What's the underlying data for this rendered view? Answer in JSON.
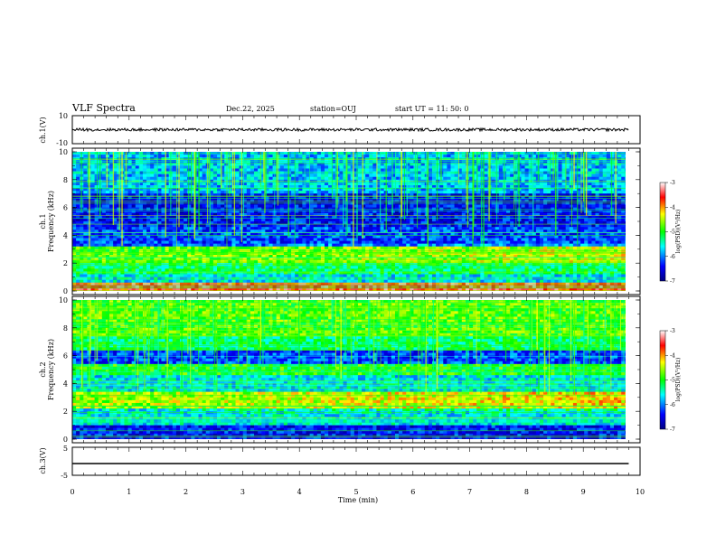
{
  "header": {
    "title": "VLF Spectra",
    "date": "Dec.22, 2025",
    "station": "station=OUJ",
    "start_ut": "start  UT =   11: 50: 0"
  },
  "chart_data": [
    {
      "type": "line",
      "panel": "ch1-waveform",
      "ylabel": "ch.1(V)",
      "ylim": [
        -10,
        10
      ],
      "yticks_labeled": [
        "10",
        "-10"
      ],
      "xlim": [
        0,
        10
      ],
      "series": [
        {
          "baseline": 0,
          "amplitude": 1
        }
      ]
    },
    {
      "type": "heatmap",
      "panel": "ch1-spectrogram",
      "ylabel": "ch.1\nFrequency (kHz)",
      "ylabel_lines": [
        "ch.1",
        "Frequency (kHz)"
      ],
      "ylim": [
        0,
        10
      ],
      "yticks": [
        "0",
        "2",
        "4",
        "6",
        "8",
        "10"
      ],
      "xlim": [
        0,
        10
      ],
      "data_end_min": 9.8,
      "colorbar": {
        "label": "log(PSD)(V²/Hz)",
        "range": [
          -7,
          -3
        ],
        "ticks": [
          "-3",
          "-4",
          "-5",
          "-6",
          "-7"
        ]
      },
      "bands": [
        {
          "f0": 0.0,
          "f1": 0.6,
          "level": -3.6
        },
        {
          "f0": 0.6,
          "f1": 1.2,
          "level": -5.6
        },
        {
          "f0": 1.2,
          "f1": 2.0,
          "level": -5.2
        },
        {
          "f0": 2.0,
          "f1": 3.2,
          "level": -4.8
        },
        {
          "f0": 3.2,
          "f1": 4.6,
          "level": -6.2
        },
        {
          "f0": 4.6,
          "f1": 7.0,
          "level": -6.4
        },
        {
          "f0": 7.0,
          "f1": 10.0,
          "level": -5.8
        }
      ]
    },
    {
      "type": "heatmap",
      "panel": "ch2-spectrogram",
      "ylabel": "ch.2\nFrequency (kHz)",
      "ylabel_lines": [
        "ch.2",
        "Frequency (kHz)"
      ],
      "ylim": [
        0,
        10
      ],
      "yticks": [
        "0",
        "2",
        "4",
        "6",
        "8",
        "10"
      ],
      "xlim": [
        0,
        10
      ],
      "data_end_min": 9.8,
      "colorbar": {
        "label": "log(PSD)(V²/Hz)",
        "range": [
          -7,
          -3
        ],
        "ticks": [
          "-3",
          "-4",
          "-5",
          "-6",
          "-7"
        ]
      },
      "bands": [
        {
          "f0": 0.0,
          "f1": 1.0,
          "level": -6.4
        },
        {
          "f0": 1.0,
          "f1": 2.2,
          "level": -5.6
        },
        {
          "f0": 2.2,
          "f1": 3.4,
          "level": -4.6
        },
        {
          "f0": 3.4,
          "f1": 4.6,
          "level": -5.6
        },
        {
          "f0": 4.6,
          "f1": 5.4,
          "level": -5.0
        },
        {
          "f0": 5.4,
          "f1": 6.4,
          "level": -6.2
        },
        {
          "f0": 6.4,
          "f1": 7.4,
          "level": -5.2
        },
        {
          "f0": 7.4,
          "f1": 10.0,
          "level": -4.8
        }
      ]
    },
    {
      "type": "line",
      "panel": "ch3-waveform",
      "ylabel": "ch.3(V)",
      "ylim": [
        -5,
        5
      ],
      "yticks_labeled": [
        "5",
        "-5"
      ],
      "xlim": [
        0,
        10
      ],
      "series": [
        {
          "baseline": -0.8,
          "amplitude": 0
        }
      ]
    }
  ],
  "xaxis": {
    "label": "Time (min)",
    "range": [
      0,
      10
    ],
    "ticks": [
      "0",
      "1",
      "2",
      "3",
      "4",
      "5",
      "6",
      "7",
      "8",
      "9",
      "10"
    ]
  }
}
